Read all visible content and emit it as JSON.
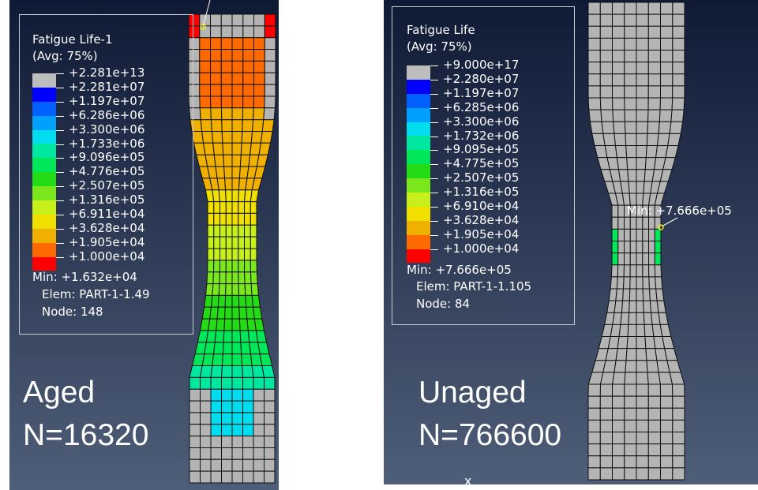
{
  "left": {
    "legend": {
      "title": "Fatigue Life-1",
      "subtitle": "(Avg: 75%)",
      "values": [
        "+2.281e+13",
        "+2.281e+07",
        "+1.197e+07",
        "+6.286e+06",
        "+3.300e+06",
        "+1.733e+06",
        "+9.096e+05",
        "+4.776e+05",
        "+2.507e+05",
        "+1.316e+05",
        "+6.911e+04",
        "+3.628e+04",
        "+1.905e+04",
        "+1.000e+04"
      ],
      "min_line": "Min: +1.632e+04",
      "elem_line": "Elem: PART-1-1.49",
      "node_line": "Node: 148"
    },
    "label_line1": "Aged",
    "label_line2": "N=16320"
  },
  "right": {
    "legend": {
      "title": "Fatigue Life",
      "subtitle": "(Avg: 75%)",
      "values": [
        "+9.000e+17",
        "+2.280e+07",
        "+1.197e+07",
        "+6.285e+06",
        "+3.300e+06",
        "+1.732e+06",
        "+9.095e+05",
        "+4.775e+05",
        "+2.507e+05",
        "+1.316e+05",
        "+6.910e+04",
        "+3.628e+04",
        "+1.905e+04",
        "+1.000e+04"
      ],
      "min_line": "Min: +7.666e+05",
      "elem_line": "Elem: PART-1-1.105",
      "node_line": "Node: 84"
    },
    "label_line1": "Unaged",
    "label_line2": "N=766600",
    "min_marker_label": "Min: +7.666e+05",
    "axis_hint": "x"
  },
  "colors": {
    "bg_top": "#0f1a35",
    "bg_bottom": "#4f5e78",
    "mesh_line": "#111111",
    "undeformed_gray": "#b4b4b4",
    "contour_scale": [
      "#bdbdbd",
      "#0000ff",
      "#0061ff",
      "#00a0ff",
      "#00ddee",
      "#00e8a0",
      "#00e85a",
      "#23dc16",
      "#7be81e",
      "#c7f01a",
      "#f0e000",
      "#f0b000",
      "#ff6a00",
      "#ff0000"
    ]
  }
}
